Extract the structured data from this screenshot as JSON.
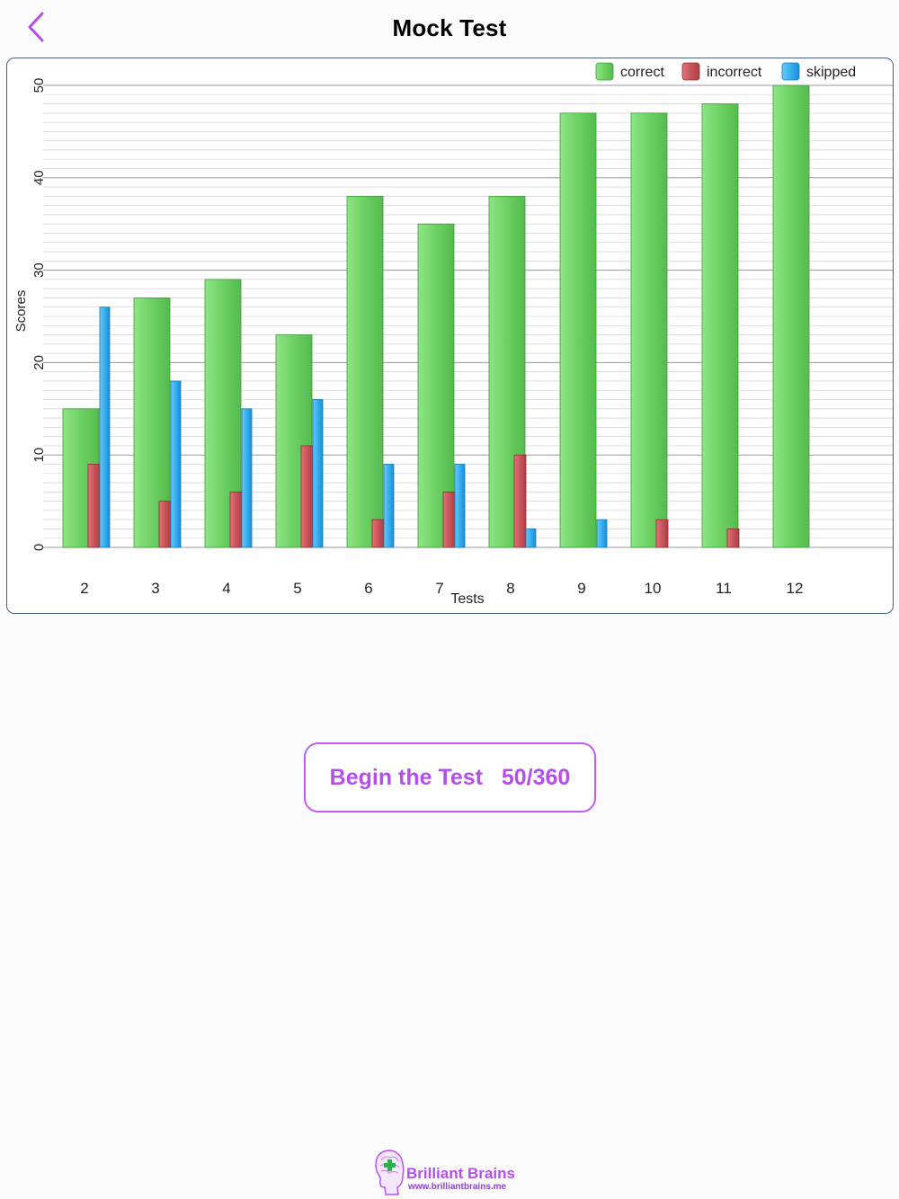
{
  "header": {
    "title": "Mock Test",
    "back_icon": "chevron-left-icon"
  },
  "chart_data": {
    "type": "bar",
    "xlabel": "Tests",
    "ylabel": "Scores",
    "ylim": [
      0,
      50
    ],
    "yticks": [
      0,
      10,
      20,
      30,
      40,
      50
    ],
    "grid": true,
    "legend": "top-right",
    "categories": [
      "2",
      "3",
      "4",
      "5",
      "6",
      "7",
      "8",
      "9",
      "10",
      "11",
      "12"
    ],
    "series": [
      {
        "name": "correct",
        "color": "#6cd063",
        "values": [
          15,
          27,
          29,
          23,
          38,
          35,
          38,
          47,
          47,
          48,
          50
        ]
      },
      {
        "name": "incorrect",
        "color": "#c9555b",
        "values": [
          9,
          5,
          6,
          11,
          3,
          6,
          10,
          0,
          3,
          2,
          0
        ]
      },
      {
        "name": "skipped",
        "color": "#35aef0",
        "values": [
          26,
          18,
          15,
          16,
          9,
          9,
          2,
          3,
          0,
          0,
          0
        ]
      }
    ]
  },
  "actions": {
    "begin_label": "Begin the Test   50/360"
  },
  "brand": {
    "name": "Brilliant Brains",
    "url": "www.brilliantbrains.me"
  }
}
